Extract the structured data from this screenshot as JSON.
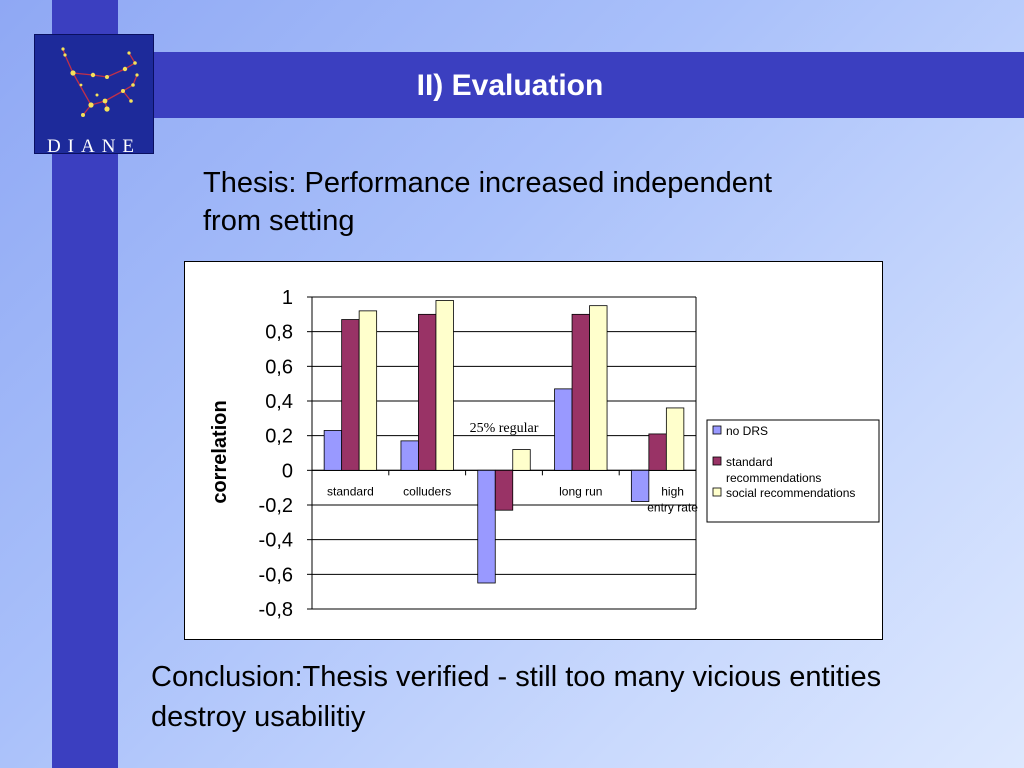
{
  "header": {
    "title": "II) Evaluation"
  },
  "logo": {
    "text": "DIANE",
    "colors": {
      "background": "#1d2a9a",
      "lines": "#c0304a",
      "stars": "#f5e25a"
    }
  },
  "thesis": {
    "line1": "Thesis:  Performance increased independent",
    "line2": "from setting"
  },
  "chart_data": {
    "type": "bar",
    "categories": [
      "standard",
      "colluders",
      "25% regular",
      "long run",
      "high entry rate"
    ],
    "category_labels": [
      [
        "standard"
      ],
      [
        "colluders"
      ],
      [
        ""
      ],
      [
        "long run"
      ],
      [
        "high",
        "entry rate"
      ]
    ],
    "annotation": "25% regular",
    "ylabel": "correlation",
    "xlabel": "",
    "ylim": [
      -0.8,
      1
    ],
    "yticks": [
      1,
      0.8,
      0.6,
      0.4,
      0.2,
      0,
      -0.2,
      -0.4,
      -0.6,
      -0.8
    ],
    "ytick_labels": [
      "1",
      "0,8",
      "0,6",
      "0,4",
      "0,2",
      "0",
      "-0,2",
      "-0,4",
      "-0,6",
      "-0,8"
    ],
    "grid": true,
    "legend_position": "right",
    "series": [
      {
        "name": "no DRS",
        "color": "#9999ff",
        "values": [
          0.23,
          0.17,
          -0.65,
          0.47,
          -0.18
        ]
      },
      {
        "name": "standard recommendations",
        "legend_lines": [
          "standard",
          "recommendations"
        ],
        "color": "#993366",
        "values": [
          0.87,
          0.9,
          -0.23,
          0.9,
          0.21
        ]
      },
      {
        "name": "social recommendations",
        "legend_lines": [
          "social recommendations"
        ],
        "color": "#ffffcc",
        "values": [
          0.92,
          0.98,
          0.12,
          0.95,
          0.36
        ]
      }
    ]
  },
  "conclusion": {
    "line1": "Conclusion:Thesis verified - still too many vicious entities",
    "line2": "destroy usabilitiy"
  }
}
